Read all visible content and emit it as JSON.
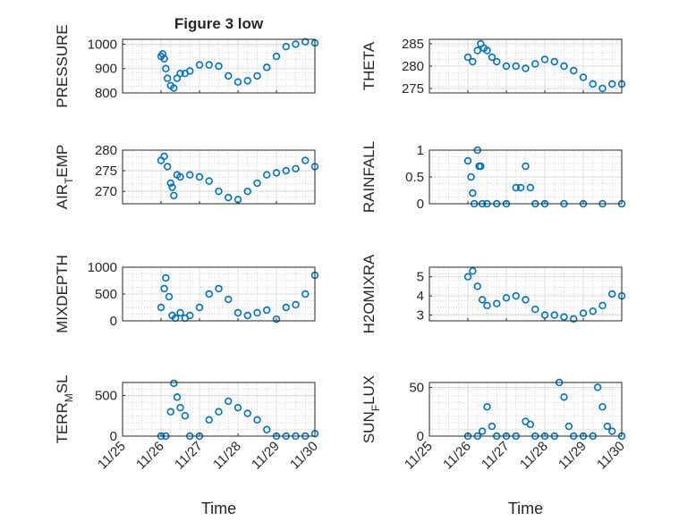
{
  "figure": {
    "title": "Figure 3 low",
    "marker_color": "#0072BD",
    "axis_color": "#262626",
    "grid_color": "#c8c8c8"
  },
  "chart_data": [
    {
      "type": "scatter",
      "title": "Figure 3 low",
      "xlabel": "",
      "ylabel": "PRESSURE",
      "xlim": [
        "11/25",
        "11/30"
      ],
      "ylim": [
        800,
        1020
      ],
      "yticks": [
        800,
        900,
        1000
      ],
      "xticks": [
        "11/25",
        "11/26",
        "11/27",
        "11/28",
        "11/29",
        "11/30"
      ],
      "show_xticklabels": false,
      "grid": true,
      "minor_grid": true,
      "x": [
        "11/26 00:00",
        "11/26 01:00",
        "11/26 02:00",
        "11/26 03:00",
        "11/26 04:00",
        "11/26 06:00",
        "11/26 08:00",
        "11/26 10:00",
        "11/26 12:00",
        "11/26 15:00",
        "11/26 18:00",
        "11/27 00:00",
        "11/27 06:00",
        "11/27 12:00",
        "11/27 18:00",
        "11/28 00:00",
        "11/28 06:00",
        "11/28 12:00",
        "11/28 18:00",
        "11/29 00:00",
        "11/29 06:00",
        "11/29 12:00",
        "11/29 18:00",
        "11/30 00:00"
      ],
      "y": [
        950,
        960,
        940,
        900,
        860,
        830,
        820,
        860,
        880,
        880,
        890,
        915,
        915,
        910,
        870,
        845,
        850,
        870,
        905,
        950,
        990,
        1000,
        1010,
        1005
      ]
    },
    {
      "type": "scatter",
      "title": "",
      "xlabel": "",
      "ylabel": "THETA",
      "xlim": [
        "11/25",
        "11/30"
      ],
      "ylim": [
        274,
        286
      ],
      "yticks": [
        275,
        280,
        285
      ],
      "xticks": [
        "11/25",
        "11/26",
        "11/27",
        "11/28",
        "11/29",
        "11/30"
      ],
      "show_xticklabels": false,
      "grid": true,
      "minor_grid": true,
      "x": [
        "11/26 00:00",
        "11/26 03:00",
        "11/26 06:00",
        "11/26 08:00",
        "11/26 10:00",
        "11/26 12:00",
        "11/26 15:00",
        "11/26 18:00",
        "11/27 00:00",
        "11/27 06:00",
        "11/27 12:00",
        "11/27 18:00",
        "11/28 00:00",
        "11/28 06:00",
        "11/28 12:00",
        "11/28 18:00",
        "11/29 00:00",
        "11/29 06:00",
        "11/29 12:00",
        "11/29 18:00",
        "11/30 00:00"
      ],
      "y": [
        282,
        281,
        283.5,
        285,
        284,
        283.5,
        282,
        281,
        280,
        280,
        279.5,
        280.5,
        281.5,
        281,
        280,
        279,
        277.5,
        276,
        275,
        276,
        276
      ]
    },
    {
      "type": "scatter",
      "title": "",
      "xlabel": "",
      "ylabel": "AIR_TEMP",
      "xlim": [
        "11/25",
        "11/30"
      ],
      "ylim": [
        267,
        280
      ],
      "yticks": [
        270,
        275,
        280
      ],
      "xticks": [
        "11/25",
        "11/26",
        "11/27",
        "11/28",
        "11/29",
        "11/30"
      ],
      "show_xticklabels": false,
      "grid": true,
      "minor_grid": true,
      "x": [
        "11/26 00:00",
        "11/26 02:00",
        "11/26 04:00",
        "11/26 06:00",
        "11/26 07:00",
        "11/26 08:00",
        "11/26 10:00",
        "11/26 12:00",
        "11/26 18:00",
        "11/27 00:00",
        "11/27 06:00",
        "11/27 12:00",
        "11/27 18:00",
        "11/28 00:00",
        "11/28 06:00",
        "11/28 12:00",
        "11/28 18:00",
        "11/29 00:00",
        "11/29 06:00",
        "11/29 12:00",
        "11/29 18:00",
        "11/30 00:00"
      ],
      "y": [
        277.5,
        278.5,
        276,
        272,
        271,
        269,
        274,
        273.5,
        274,
        273.5,
        272.5,
        270,
        268.5,
        268,
        270,
        272,
        274,
        274.5,
        275,
        275.5,
        277.5,
        276
      ]
    },
    {
      "type": "scatter",
      "title": "",
      "xlabel": "",
      "ylabel": "RAINFALL",
      "xlim": [
        "11/25",
        "11/30"
      ],
      "ylim": [
        0,
        1
      ],
      "yticks": [
        0,
        0.5,
        1
      ],
      "xticks": [
        "11/25",
        "11/26",
        "11/27",
        "11/28",
        "11/29",
        "11/30"
      ],
      "show_xticklabels": false,
      "grid": true,
      "minor_grid": true,
      "x": [
        "11/26 00:00",
        "11/26 02:00",
        "11/26 03:00",
        "11/26 04:00",
        "11/26 06:00",
        "11/26 07:00",
        "11/26 08:00",
        "11/26 09:00",
        "11/26 12:00",
        "11/26 18:00",
        "11/27 00:00",
        "11/27 06:00",
        "11/27 09:00",
        "11/27 12:00",
        "11/27 15:00",
        "11/27 18:00",
        "11/28 00:00",
        "11/28 12:00",
        "11/29 00:00",
        "11/29 12:00",
        "11/30 00:00"
      ],
      "y": [
        0.8,
        0.5,
        0.2,
        0,
        1,
        0.7,
        0.7,
        0,
        0,
        0,
        0,
        0.3,
        0.3,
        0.7,
        0.3,
        0,
        0,
        0,
        0,
        0,
        0
      ]
    },
    {
      "type": "scatter",
      "title": "",
      "xlabel": "",
      "ylabel": "MIXDEPTH",
      "xlim": [
        "11/25",
        "11/30"
      ],
      "ylim": [
        0,
        1000
      ],
      "yticks": [
        0,
        500,
        1000
      ],
      "xticks": [
        "11/25",
        "11/26",
        "11/27",
        "11/28",
        "11/29",
        "11/30"
      ],
      "show_xticklabels": false,
      "grid": true,
      "minor_grid": true,
      "x": [
        "11/26 00:00",
        "11/26 02:00",
        "11/26 03:00",
        "11/26 05:00",
        "11/26 07:00",
        "11/26 09:00",
        "11/26 12:00",
        "11/26 15:00",
        "11/26 18:00",
        "11/27 00:00",
        "11/27 06:00",
        "11/27 12:00",
        "11/27 18:00",
        "11/28 00:00",
        "11/28 06:00",
        "11/28 12:00",
        "11/28 18:00",
        "11/29 00:00",
        "11/29 06:00",
        "11/29 12:00",
        "11/29 18:00",
        "11/30 00:00"
      ],
      "y": [
        250,
        600,
        800,
        450,
        100,
        50,
        150,
        50,
        100,
        250,
        500,
        600,
        400,
        150,
        100,
        150,
        200,
        30,
        250,
        300,
        500,
        850
      ]
    },
    {
      "type": "scatter",
      "title": "",
      "xlabel": "",
      "ylabel": "H2OMIXRA",
      "xlim": [
        "11/25",
        "11/30"
      ],
      "ylim": [
        2.7,
        5.5
      ],
      "yticks": [
        3,
        4,
        5
      ],
      "xticks": [
        "11/25",
        "11/26",
        "11/27",
        "11/28",
        "11/29",
        "11/30"
      ],
      "show_xticklabels": false,
      "grid": true,
      "minor_grid": true,
      "x": [
        "11/26 00:00",
        "11/26 03:00",
        "11/26 06:00",
        "11/26 09:00",
        "11/26 12:00",
        "11/26 18:00",
        "11/27 00:00",
        "11/27 06:00",
        "11/27 12:00",
        "11/27 18:00",
        "11/28 00:00",
        "11/28 06:00",
        "11/28 12:00",
        "11/28 18:00",
        "11/29 00:00",
        "11/29 06:00",
        "11/29 12:00",
        "11/29 18:00",
        "11/30 00:00"
      ],
      "y": [
        5.0,
        5.3,
        4.5,
        3.8,
        3.5,
        3.6,
        3.9,
        4.0,
        3.8,
        3.3,
        3.0,
        3.0,
        2.9,
        2.8,
        3.1,
        3.2,
        3.5,
        4.1,
        4.0
      ]
    },
    {
      "type": "scatter",
      "title": "",
      "xlabel": "Time",
      "ylabel": "TERR_MSL",
      "xlim": [
        "11/25",
        "11/30"
      ],
      "ylim": [
        0,
        660
      ],
      "yticks": [
        0,
        500
      ],
      "xticks": [
        "11/25",
        "11/26",
        "11/27",
        "11/28",
        "11/29",
        "11/30"
      ],
      "show_xticklabels": true,
      "grid": true,
      "minor_grid": true,
      "x": [
        "11/26 00:00",
        "11/26 03:00",
        "11/26 06:00",
        "11/26 08:00",
        "11/26 10:00",
        "11/26 12:00",
        "11/26 15:00",
        "11/26 18:00",
        "11/27 00:00",
        "11/27 06:00",
        "11/27 12:00",
        "11/27 18:00",
        "11/28 00:00",
        "11/28 06:00",
        "11/28 12:00",
        "11/28 18:00",
        "11/29 00:00",
        "11/29 06:00",
        "11/29 12:00",
        "11/29 18:00",
        "11/30 00:00"
      ],
      "y": [
        0,
        0,
        300,
        650,
        480,
        350,
        250,
        0,
        0,
        200,
        300,
        430,
        350,
        280,
        200,
        80,
        0,
        0,
        0,
        0,
        30
      ]
    },
    {
      "type": "scatter",
      "title": "",
      "xlabel": "Time",
      "ylabel": "SUN_FLUX",
      "xlim": [
        "11/25",
        "11/30"
      ],
      "ylim": [
        0,
        55
      ],
      "yticks": [
        0,
        50
      ],
      "xticks": [
        "11/25",
        "11/26",
        "11/27",
        "11/28",
        "11/29",
        "11/30"
      ],
      "show_xticklabels": true,
      "grid": true,
      "minor_grid": true,
      "x": [
        "11/26 00:00",
        "11/26 06:00",
        "11/26 09:00",
        "11/26 12:00",
        "11/26 15:00",
        "11/26 18:00",
        "11/27 00:00",
        "11/27 06:00",
        "11/27 12:00",
        "11/27 15:00",
        "11/27 18:00",
        "11/28 00:00",
        "11/28 06:00",
        "11/28 09:00",
        "11/28 12:00",
        "11/28 15:00",
        "11/28 18:00",
        "11/29 00:00",
        "11/29 06:00",
        "11/29 09:00",
        "11/29 12:00",
        "11/29 15:00",
        "11/29 18:00",
        "11/30 00:00"
      ],
      "y": [
        0,
        0,
        5,
        30,
        10,
        0,
        0,
        0,
        15,
        12,
        0,
        0,
        0,
        55,
        40,
        10,
        0,
        0,
        0,
        50,
        30,
        10,
        5,
        0
      ]
    }
  ]
}
